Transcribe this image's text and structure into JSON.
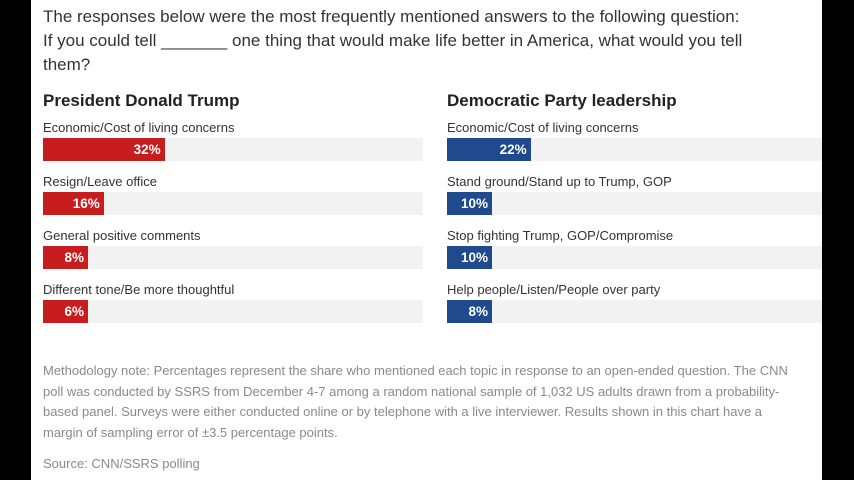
{
  "question": {
    "intro": "The responses below were the most frequently mentioned answers to the following question:",
    "text": "If you could tell _______ one thing that would make life better in America, what would you tell them?"
  },
  "chart_data": [
    {
      "type": "bar",
      "orientation": "horizontal",
      "title": "President Donald Trump",
      "color": "#c81d1f",
      "categories": [
        "Economic/Cost of living concerns",
        "Resign/Leave office",
        "General positive comments",
        "Different tone/Be more thoughtful"
      ],
      "values": [
        32,
        16,
        8,
        6
      ],
      "value_labels": [
        "32%",
        "16%",
        "8%",
        "6%"
      ],
      "xlim": [
        0,
        100
      ]
    },
    {
      "type": "bar",
      "orientation": "horizontal",
      "title": "Democratic Party leadership",
      "color": "#1f4a8e",
      "categories": [
        "Economic/Cost of living concerns",
        "Stand ground/Stand up to Trump, GOP",
        "Stop fighting Trump, GOP/Compromise",
        "Help people/Listen/People over party"
      ],
      "values": [
        22,
        10,
        10,
        8
      ],
      "value_labels": [
        "22%",
        "10%",
        "10%",
        "8%"
      ],
      "xlim": [
        0,
        100
      ]
    }
  ],
  "methodology": "Methodology note: Percentages represent the share who mentioned each topic in response to an open-ended question. The CNN poll was conducted by SSRS from December 4-7 among a random national sample of 1,032 US adults drawn from a probability-based panel. Surveys were either conducted online or by telephone with a live interviewer. Results shown in this chart have a margin of sampling error of ±3.5 percentage points.",
  "source": "Source: CNN/SSRS polling"
}
